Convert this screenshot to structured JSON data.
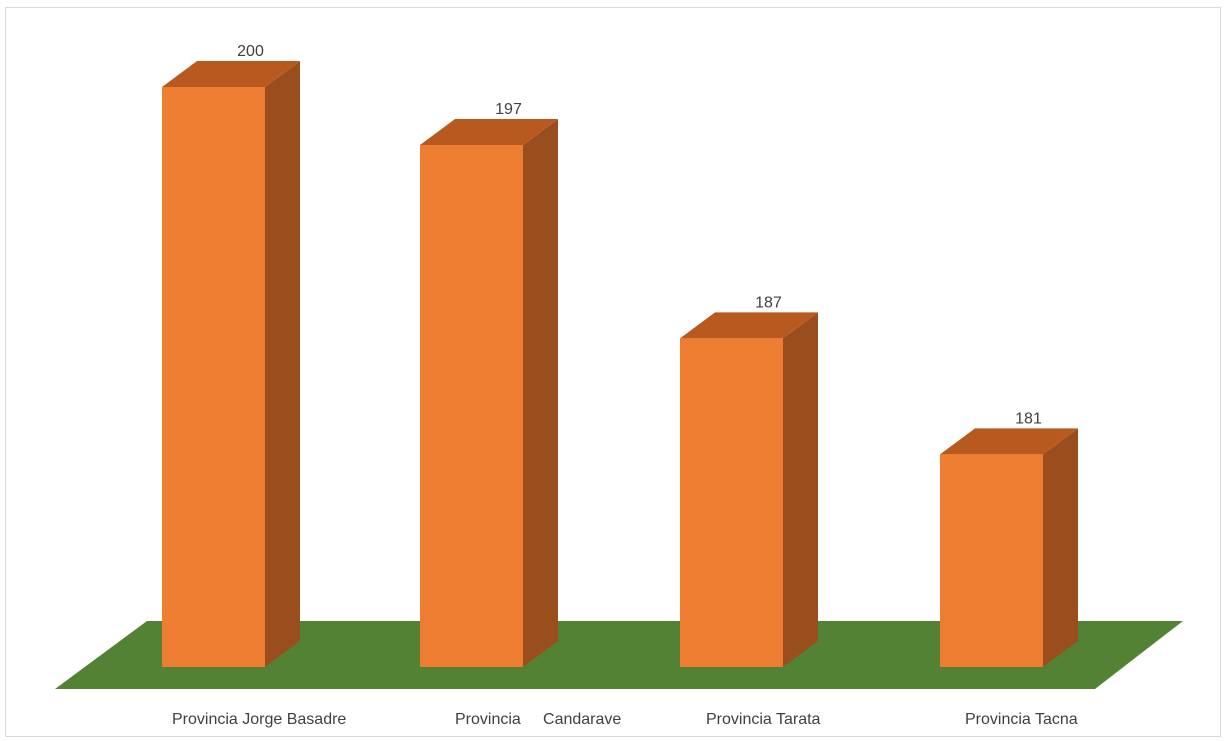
{
  "chart_data": {
    "type": "bar",
    "style": "3d-column",
    "title": "",
    "xlabel": "",
    "ylabel": "",
    "categories": [
      "Provincia Jorge Basadre",
      "Provincia     Candarave",
      "Provincia Tarata",
      "Provincia Tacna"
    ],
    "values": [
      200,
      197,
      187,
      181
    ],
    "data_labels": [
      "200",
      "197",
      "187",
      "181"
    ],
    "ylim": [
      170,
      202
    ],
    "grid": false,
    "legend": "none",
    "colors": {
      "bar_front": "#ed7d31",
      "bar_top": "#b85a20",
      "bar_side": "#9a4e1d",
      "floor": "#548235"
    }
  }
}
